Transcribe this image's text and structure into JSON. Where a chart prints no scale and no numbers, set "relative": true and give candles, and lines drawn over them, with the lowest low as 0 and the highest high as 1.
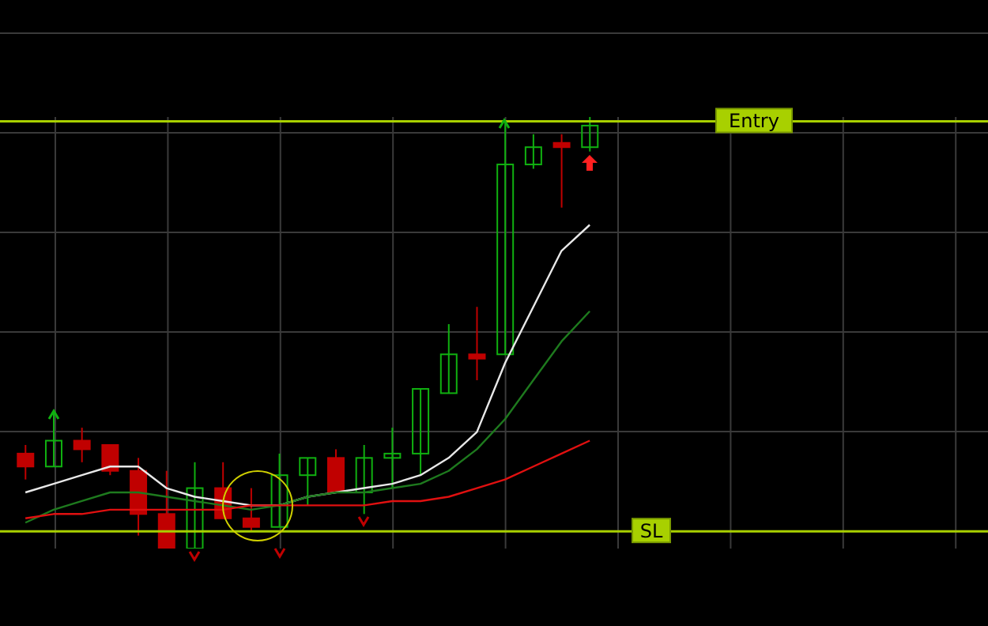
{
  "chart_data": {
    "type": "candlestick",
    "relative": true,
    "grid": true,
    "categories": [
      null,
      null,
      null,
      null,
      null,
      null,
      null,
      null,
      null,
      null,
      null,
      null,
      null,
      null,
      null,
      null,
      null,
      null,
      null,
      null,
      null
    ],
    "ohlc": [
      [
        0.22,
        0.24,
        0.16,
        0.19
      ],
      [
        0.19,
        0.32,
        0.19,
        0.25
      ],
      [
        0.25,
        0.28,
        0.2,
        0.23
      ],
      [
        0.24,
        0.24,
        0.17,
        0.18
      ],
      [
        0.18,
        0.21,
        0.03,
        0.08
      ],
      [
        0.08,
        0.18,
        0,
        0
      ],
      [
        0,
        0.2,
        0,
        0.14
      ],
      [
        0.14,
        0.2,
        0.07,
        0.07
      ],
      [
        0.07,
        0.14,
        0.04,
        0.05
      ],
      [
        0.05,
        0.22,
        0.05,
        0.17
      ],
      [
        0.17,
        0.21,
        0.1,
        0.21
      ],
      [
        0.21,
        0.23,
        0.13,
        0.13
      ],
      [
        0.13,
        0.24,
        0.08,
        0.21
      ],
      [
        0.21,
        0.28,
        0.14,
        0.22
      ],
      [
        0.22,
        0.37,
        0.17,
        0.37
      ],
      [
        0.36,
        0.52,
        0.36,
        0.45
      ],
      [
        0.45,
        0.56,
        0.39,
        0.44
      ],
      [
        0.45,
        0.99,
        0.45,
        0.89
      ],
      [
        0.89,
        0.96,
        0.88,
        0.93
      ],
      [
        0.94,
        0.96,
        0.79,
        0.93
      ],
      [
        0.93,
        1,
        0.92,
        0.98
      ]
    ],
    "series": [
      {
        "type": "line",
        "color": "#e8e8e8",
        "values": [
          0.13,
          0.15,
          0.17,
          0.19,
          0.19,
          0.14,
          0.12,
          0.11,
          0.1,
          0.1,
          0.12,
          0.13,
          0.14,
          0.15,
          0.17,
          0.21,
          0.27,
          0.43,
          0.56,
          0.69,
          0.75
        ]
      },
      {
        "type": "line",
        "color": "#1e7a1e",
        "values": [
          0.06,
          0.09,
          0.11,
          0.13,
          0.13,
          0.12,
          0.11,
          0.1,
          0.09,
          0.1,
          0.12,
          0.13,
          0.13,
          0.14,
          0.15,
          0.18,
          0.23,
          0.3,
          0.39,
          0.48,
          0.55
        ]
      },
      {
        "type": "line",
        "color": "#e01010",
        "values": [
          0.07,
          0.08,
          0.08,
          0.09,
          0.09,
          0.09,
          0.09,
          0.09,
          0.1,
          0.1,
          0.1,
          0.1,
          0.1,
          0.11,
          0.11,
          0.12,
          0.14,
          0.16,
          0.19,
          0.22,
          0.25
        ]
      }
    ],
    "ref_lines": [
      {
        "axis": "y",
        "value": 0.99,
        "label": "Entry",
        "color": "#a8d000"
      },
      {
        "axis": "y",
        "value": 0.04,
        "label": "SL",
        "color": "#a8d000"
      }
    ]
  }
}
